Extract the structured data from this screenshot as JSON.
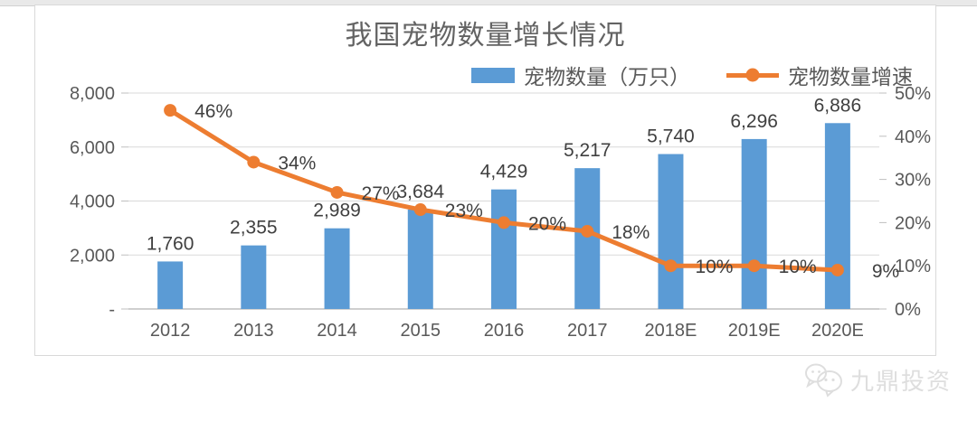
{
  "page": {
    "background": "#ffffff",
    "top_strip_color": "#e9e9e9"
  },
  "chart_data": {
    "type": "combo bar+line",
    "title": "我国宠物数量增长情况",
    "categories": [
      "2012",
      "2013",
      "2014",
      "2015",
      "2016",
      "2017",
      "2018E",
      "2019E",
      "2020E"
    ],
    "series": [
      {
        "name": "宠物数量（万只）",
        "type": "bar",
        "axis": "left",
        "color": "#5B9BD5",
        "values": [
          1760,
          2355,
          2989,
          3684,
          4429,
          5217,
          5740,
          6296,
          6886
        ],
        "labels": [
          "1,760",
          "2,355",
          "2,989",
          "3,684",
          "4,429",
          "5,217",
          "5,740",
          "6,296",
          "6,886"
        ]
      },
      {
        "name": "宠物数量增速",
        "type": "line",
        "axis": "right",
        "color": "#ED7D31",
        "values": [
          46,
          34,
          27,
          23,
          20,
          18,
          10,
          10,
          9
        ],
        "labels": [
          "46%",
          "34%",
          "27%",
          "23%",
          "20%",
          "18%",
          "10%",
          "10%",
          "9%"
        ]
      }
    ],
    "left_axis": {
      "min": 0,
      "max": 8000,
      "ticks_top_to_bottom": [
        "8,000",
        "6,000",
        "4,000",
        "2,000",
        "-"
      ]
    },
    "right_axis": {
      "min": 0,
      "max": 50,
      "ticks_top_to_bottom": [
        "50%",
        "40%",
        "30%",
        "20%",
        "10%",
        "0%"
      ]
    },
    "grid": true,
    "legend_position": "top-right",
    "colors": {
      "gridline": "#d9d9d9",
      "axis_line": "#bfbfbf",
      "axis_text": "#595959",
      "data_label_text": "#404040"
    }
  },
  "watermark": {
    "icon": "wechat-icon",
    "label": "九鼎投资"
  }
}
